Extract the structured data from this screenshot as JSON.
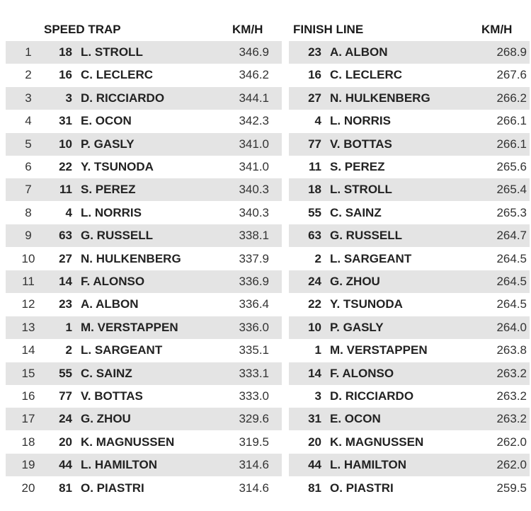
{
  "left": {
    "title": "SPEED TRAP",
    "unit": "KM/H",
    "rows": [
      [
        "1",
        "18",
        "L. STROLL",
        "346.9"
      ],
      [
        "2",
        "16",
        "C. LECLERC",
        "346.2"
      ],
      [
        "3",
        "3",
        "D. RICCIARDO",
        "344.1"
      ],
      [
        "4",
        "31",
        "E. OCON",
        "342.3"
      ],
      [
        "5",
        "10",
        "P. GASLY",
        "341.0"
      ],
      [
        "6",
        "22",
        "Y. TSUNODA",
        "341.0"
      ],
      [
        "7",
        "11",
        "S. PEREZ",
        "340.3"
      ],
      [
        "8",
        "4",
        "L. NORRIS",
        "340.3"
      ],
      [
        "9",
        "63",
        "G. RUSSELL",
        "338.1"
      ],
      [
        "10",
        "27",
        "N. HULKENBERG",
        "337.9"
      ],
      [
        "11",
        "14",
        "F. ALONSO",
        "336.9"
      ],
      [
        "12",
        "23",
        "A. ALBON",
        "336.4"
      ],
      [
        "13",
        "1",
        "M. VERSTAPPEN",
        "336.0"
      ],
      [
        "14",
        "2",
        "L. SARGEANT",
        "335.1"
      ],
      [
        "15",
        "55",
        "C. SAINZ",
        "333.1"
      ],
      [
        "16",
        "77",
        "V. BOTTAS",
        "333.0"
      ],
      [
        "17",
        "24",
        "G. ZHOU",
        "329.6"
      ],
      [
        "18",
        "20",
        "K. MAGNUSSEN",
        "319.5"
      ],
      [
        "19",
        "44",
        "L. HAMILTON",
        "314.6"
      ],
      [
        "20",
        "81",
        "O. PIASTRI",
        "314.6"
      ]
    ]
  },
  "right": {
    "title": "FINISH LINE",
    "unit": "KM/H",
    "rows": [
      [
        "23",
        "A. ALBON",
        "268.9"
      ],
      [
        "16",
        "C. LECLERC",
        "267.6"
      ],
      [
        "27",
        "N. HULKENBERG",
        "266.2"
      ],
      [
        "4",
        "L. NORRIS",
        "266.1"
      ],
      [
        "77",
        "V. BOTTAS",
        "266.1"
      ],
      [
        "11",
        "S. PEREZ",
        "265.6"
      ],
      [
        "18",
        "L. STROLL",
        "265.4"
      ],
      [
        "55",
        "C. SAINZ",
        "265.3"
      ],
      [
        "63",
        "G. RUSSELL",
        "264.7"
      ],
      [
        "2",
        "L. SARGEANT",
        "264.5"
      ],
      [
        "24",
        "G. ZHOU",
        "264.5"
      ],
      [
        "22",
        "Y. TSUNODA",
        "264.5"
      ],
      [
        "10",
        "P. GASLY",
        "264.0"
      ],
      [
        "1",
        "M. VERSTAPPEN",
        "263.8"
      ],
      [
        "14",
        "F. ALONSO",
        "263.2"
      ],
      [
        "3",
        "D. RICCIARDO",
        "263.2"
      ],
      [
        "31",
        "E. OCON",
        "263.2"
      ],
      [
        "20",
        "K. MAGNUSSEN",
        "262.0"
      ],
      [
        "44",
        "L. HAMILTON",
        "262.0"
      ],
      [
        "81",
        "O. PIASTRI",
        "259.5"
      ]
    ]
  }
}
